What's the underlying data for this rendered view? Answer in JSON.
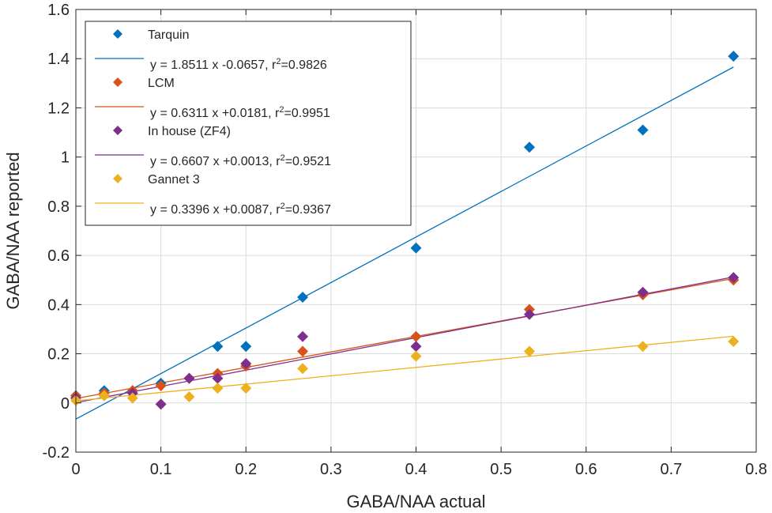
{
  "chart_data": {
    "type": "scatter",
    "title": "",
    "xlabel": "GABA/NAA actual",
    "ylabel": "GABA/NAA reported",
    "xlim": [
      0,
      0.8
    ],
    "ylim": [
      -0.2,
      1.6
    ],
    "xticks": [
      0,
      0.1,
      0.2,
      0.3,
      0.4,
      0.5,
      0.6,
      0.7,
      0.8
    ],
    "xtick_labels": [
      "0",
      "0.1",
      "0.2",
      "0.3",
      "0.4",
      "0.5",
      "0.6",
      "0.7",
      "0.8"
    ],
    "yticks": [
      -0.2,
      0,
      0.2,
      0.4,
      0.6,
      0.8,
      1.0,
      1.2,
      1.4,
      1.6
    ],
    "ytick_labels": [
      "-0.2",
      "0",
      "0.2",
      "0.4",
      "0.6",
      "0.8",
      "1",
      "1.2",
      "1.4",
      "1.6"
    ],
    "grid": true,
    "legend_position": "top-left",
    "series": [
      {
        "name": "Tarquin",
        "fit_label": "y = 1.8511 x -0.0657, r",
        "fit_r2": "=0.9826",
        "color": "#0072BD",
        "slope": 1.8511,
        "intercept": -0.0657,
        "x": [
          0,
          0.0333,
          0.0667,
          0.1,
          0.1667,
          0.2,
          0.2667,
          0.4,
          0.5333,
          0.6667,
          0.7733
        ],
        "y": [
          0.03,
          0.05,
          0.05,
          0.08,
          0.23,
          0.23,
          0.43,
          0.63,
          1.04,
          1.11,
          1.41
        ]
      },
      {
        "name": "LCM",
        "fit_label": "y = 0.6311 x +0.0181, r",
        "fit_r2": "=0.9951",
        "color": "#D95319",
        "slope": 0.6311,
        "intercept": 0.0181,
        "x": [
          0,
          0.0333,
          0.0667,
          0.1,
          0.1333,
          0.1667,
          0.2,
          0.2667,
          0.4,
          0.5333,
          0.6667,
          0.7733
        ],
        "y": [
          0.03,
          0.04,
          0.05,
          0.07,
          0.1,
          0.12,
          0.15,
          0.21,
          0.27,
          0.38,
          0.44,
          0.5
        ]
      },
      {
        "name": "In house (ZF4)",
        "fit_label": "y = 0.6607 x +0.0013, r",
        "fit_r2": "=0.9521",
        "color": "#7E2F8E",
        "slope": 0.6607,
        "intercept": 0.0013,
        "x": [
          0,
          0.0333,
          0.0667,
          0.1,
          0.1333,
          0.1667,
          0.2,
          0.2667,
          0.4,
          0.5333,
          0.6667,
          0.7733
        ],
        "y": [
          0.02,
          0.03,
          0.04,
          -0.005,
          0.1,
          0.1,
          0.16,
          0.27,
          0.23,
          0.36,
          0.45,
          0.51
        ]
      },
      {
        "name": "Gannet 3",
        "fit_label": "y = 0.3396 x +0.0087, r",
        "fit_r2": "=0.9367",
        "color": "#EDB120",
        "slope": 0.3396,
        "intercept": 0.0087,
        "x": [
          0,
          0.0333,
          0.0667,
          0.1333,
          0.1667,
          0.2,
          0.2667,
          0.4,
          0.5333,
          0.6667,
          0.7733
        ],
        "y": [
          0.01,
          0.03,
          0.02,
          0.025,
          0.06,
          0.06,
          0.14,
          0.19,
          0.21,
          0.23,
          0.25
        ]
      }
    ],
    "r2_superscript": "2"
  }
}
